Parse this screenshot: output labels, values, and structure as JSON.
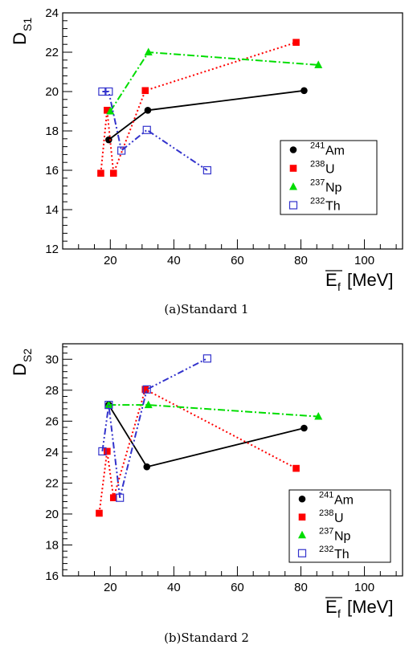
{
  "chart_data": [
    {
      "type": "line",
      "caption": "(a)Standard 1",
      "ylabel": "D",
      "ylabel_sub": "S1",
      "xlabel": "E",
      "xlabel_sub": "f",
      "xlabel_unit": "[MeV]",
      "xlim": [
        5,
        112
      ],
      "ylim": [
        12,
        24
      ],
      "xticks": [
        20,
        40,
        60,
        80,
        100
      ],
      "yticks": [
        12,
        14,
        16,
        18,
        20,
        22,
        24
      ],
      "legend_position": "right",
      "series": [
        {
          "name_sup": "241",
          "name": "Am",
          "color": "#000000",
          "marker": "circle",
          "line": "solid",
          "x": [
            19.5,
            31.8,
            81.0
          ],
          "y": [
            17.55,
            19.05,
            20.05
          ]
        },
        {
          "name_sup": "238",
          "name": "U",
          "color": "#ff0000",
          "marker": "square",
          "line": "dotted",
          "x": [
            17.0,
            19.0,
            21.0,
            31.0,
            78.5
          ],
          "y": [
            15.85,
            19.05,
            15.85,
            20.05,
            22.5
          ]
        },
        {
          "name_sup": "237",
          "name": "Np",
          "color": "#00dd00",
          "marker": "triangle",
          "line": "dashdot",
          "x": [
            20.0,
            32.0,
            85.5
          ],
          "y": [
            19.0,
            22.0,
            21.35
          ]
        },
        {
          "name_sup": "232",
          "name": "Th",
          "color": "#3333cc",
          "marker": "open-square",
          "line": "dashdotdot",
          "x": [
            17.5,
            19.5,
            23.5,
            31.5,
            50.5
          ],
          "y": [
            20.0,
            20.0,
            17.0,
            18.05,
            16.0
          ]
        }
      ]
    },
    {
      "type": "line",
      "caption": "(b)Standard 2",
      "ylabel": "D",
      "ylabel_sub": "S2",
      "xlabel": "E",
      "xlabel_sub": "f",
      "xlabel_unit": "[MeV]",
      "xlim": [
        5,
        112
      ],
      "ylim": [
        16,
        31
      ],
      "xticks": [
        20,
        40,
        60,
        80,
        100
      ],
      "yticks": [
        16,
        18,
        20,
        22,
        24,
        26,
        28,
        30
      ],
      "legend_position": "bottom-right",
      "series": [
        {
          "name_sup": "241",
          "name": "Am",
          "color": "#000000",
          "marker": "circle",
          "line": "solid",
          "x": [
            19.5,
            31.5,
            81.0
          ],
          "y": [
            27.05,
            23.05,
            25.55
          ]
        },
        {
          "name_sup": "238",
          "name": "U",
          "color": "#ff0000",
          "marker": "square",
          "line": "dotted",
          "x": [
            16.5,
            19.0,
            21.0,
            31.0,
            78.5
          ],
          "y": [
            20.05,
            24.05,
            21.05,
            28.05,
            22.95
          ]
        },
        {
          "name_sup": "237",
          "name": "Np",
          "color": "#00dd00",
          "marker": "triangle",
          "line": "dashdot",
          "x": [
            19.5,
            32.0,
            85.5
          ],
          "y": [
            27.05,
            27.05,
            26.3
          ]
        },
        {
          "name_sup": "232",
          "name": "Th",
          "color": "#3333cc",
          "marker": "open-square",
          "line": "dashdotdot",
          "x": [
            17.5,
            19.5,
            23.0,
            31.5,
            50.5
          ],
          "y": [
            24.05,
            27.05,
            21.05,
            28.05,
            30.05
          ]
        }
      ]
    }
  ]
}
